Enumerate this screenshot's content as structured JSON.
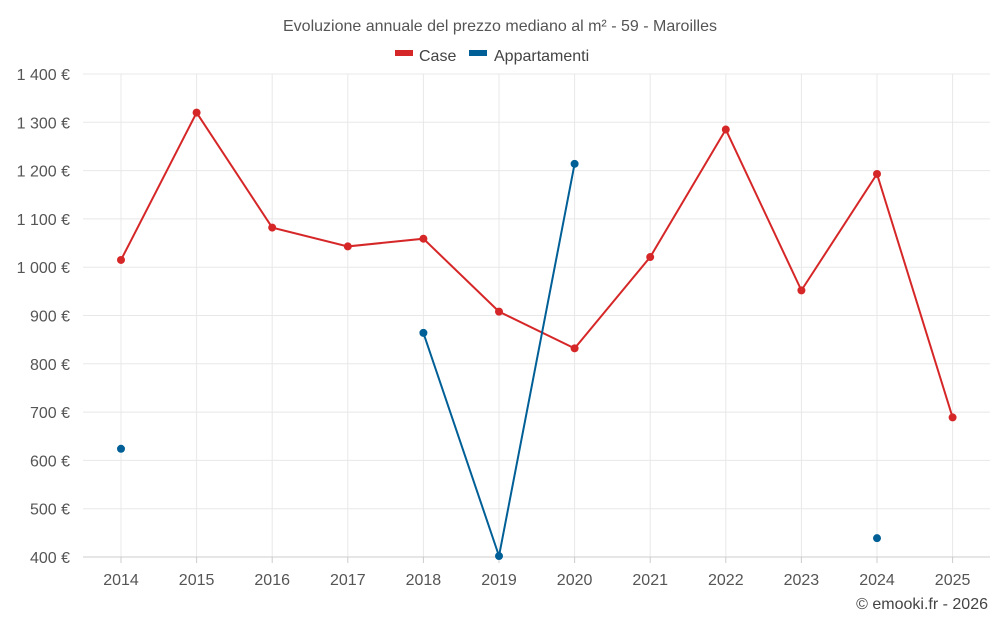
{
  "chart_data": {
    "type": "line",
    "title": "Evoluzione annuale del prezzo mediano al m² - 59 - Maroilles",
    "xlabel": "",
    "ylabel": "",
    "categories": [
      "2014",
      "2015",
      "2016",
      "2017",
      "2018",
      "2019",
      "2020",
      "2021",
      "2022",
      "2023",
      "2024",
      "2025"
    ],
    "ylim": [
      400,
      1400
    ],
    "yticks": [
      400,
      500,
      600,
      700,
      800,
      900,
      1000,
      1100,
      1200,
      1300,
      1400
    ],
    "ytick_labels": [
      "400 €",
      "500 €",
      "600 €",
      "700 €",
      "800 €",
      "900 €",
      "1 000 €",
      "1 100 €",
      "1 200 €",
      "1 300 €",
      "1 400 €"
    ],
    "grid": true,
    "legend_position": "top-center",
    "series": [
      {
        "name": "Case",
        "color": "#d62728",
        "values": [
          1015,
          1320,
          1082,
          1043,
          1059,
          908,
          832,
          1021,
          1285,
          952,
          1193,
          689
        ]
      },
      {
        "name": "Appartamenti",
        "color": "#005f96",
        "values": [
          624,
          null,
          null,
          null,
          864,
          402,
          1214,
          null,
          null,
          null,
          439,
          null
        ]
      }
    ],
    "credit": "© emooki.fr - 2026"
  }
}
